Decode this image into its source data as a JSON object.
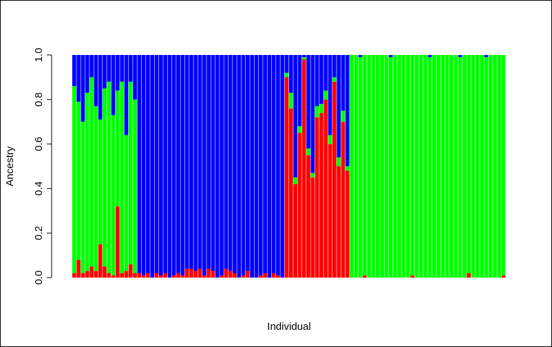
{
  "chart_data": {
    "type": "stacked_bar",
    "xlabel": "Individual",
    "ylabel": "Ancestry",
    "ylim": [
      0,
      1
    ],
    "yticks": [
      {
        "value": 0,
        "label": "0.0"
      },
      0.2,
      0.4,
      0.6,
      0.8,
      {
        "value": 1,
        "label": "1.0"
      }
    ],
    "series": [
      {
        "color": "#ff0000",
        "values": [
          0.02,
          0.08,
          0.02,
          0.03,
          0.05,
          0.03,
          0.15,
          0.05,
          0.02,
          0.01,
          0.32,
          0.02,
          0.03,
          0.06,
          0.02,
          0.02,
          0.01,
          0.02,
          0,
          0.02,
          0.01,
          0.02,
          0,
          0.01,
          0.02,
          0.01,
          0.04,
          0.04,
          0.03,
          0.04,
          0.01,
          0.04,
          0.03,
          0,
          0.01,
          0.04,
          0.03,
          0.02,
          0,
          0.01,
          0.03,
          0,
          0,
          0.01,
          0.02,
          0,
          0.02,
          0.01,
          0,
          0.9,
          0.76,
          0.42,
          0.65,
          0.98,
          0.55,
          0.45,
          0.72,
          0.74,
          0.8,
          0.6,
          0.88,
          0.5,
          0.7,
          0.48,
          0,
          0,
          0,
          0.01,
          0,
          0,
          0,
          0,
          0,
          0,
          0,
          0,
          0,
          0,
          0.01,
          0,
          0,
          0,
          0,
          0,
          0,
          0,
          0,
          0,
          0,
          0,
          0,
          0.02,
          0,
          0,
          0,
          0,
          0,
          0,
          0,
          0.01
        ]
      },
      {
        "color": "#00ff00",
        "values": [
          0.84,
          0.71,
          0.68,
          0.8,
          0.85,
          0.74,
          0.56,
          0.8,
          0.86,
          0.72,
          0.52,
          0.86,
          0.61,
          0.82,
          0.78,
          0,
          0,
          0,
          0,
          0,
          0,
          0,
          0,
          0,
          0,
          0,
          0,
          0,
          0,
          0,
          0,
          0,
          0,
          0,
          0,
          0,
          0,
          0,
          0,
          0,
          0,
          0,
          0,
          0,
          0,
          0,
          0,
          0,
          0,
          0.02,
          0.07,
          0.03,
          0.03,
          0.01,
          0.03,
          0.02,
          0.05,
          0.04,
          0.04,
          0.04,
          0.02,
          0.04,
          0.05,
          0.02,
          1,
          1,
          0.99,
          0.99,
          1,
          1,
          1,
          1,
          1,
          0.99,
          1,
          1,
          1,
          1,
          0.99,
          1,
          1,
          1,
          0.99,
          1,
          1,
          1,
          1,
          1,
          1,
          0.99,
          1,
          0.98,
          1,
          1,
          1,
          0.99,
          1,
          1,
          1,
          0.99
        ]
      },
      {
        "color": "#0000ff",
        "values": [
          0.14,
          0.21,
          0.3,
          0.17,
          0.1,
          0.23,
          0.29,
          0.15,
          0.12,
          0.27,
          0.16,
          0.12,
          0.36,
          0.12,
          0.2,
          0.98,
          0.99,
          0.98,
          1,
          0.98,
          0.99,
          0.98,
          1,
          0.99,
          0.98,
          0.99,
          0.96,
          0.96,
          0.97,
          0.96,
          0.99,
          0.96,
          0.97,
          1,
          0.99,
          0.96,
          0.97,
          0.98,
          1,
          0.99,
          0.97,
          1,
          1,
          0.99,
          0.98,
          1,
          0.98,
          0.99,
          1,
          0.08,
          0.17,
          0.55,
          0.32,
          0.01,
          0.42,
          0.53,
          0.23,
          0.22,
          0.16,
          0.36,
          0.1,
          0.46,
          0.25,
          0.5,
          0,
          0,
          0.01,
          0,
          0,
          0,
          0,
          0,
          0,
          0.01,
          0,
          0,
          0,
          0,
          0,
          0,
          0,
          0,
          0.01,
          0,
          0,
          0,
          0,
          0,
          0,
          0.01,
          0,
          0,
          0,
          0,
          0,
          0.01,
          0,
          0,
          0,
          0
        ]
      }
    ]
  }
}
